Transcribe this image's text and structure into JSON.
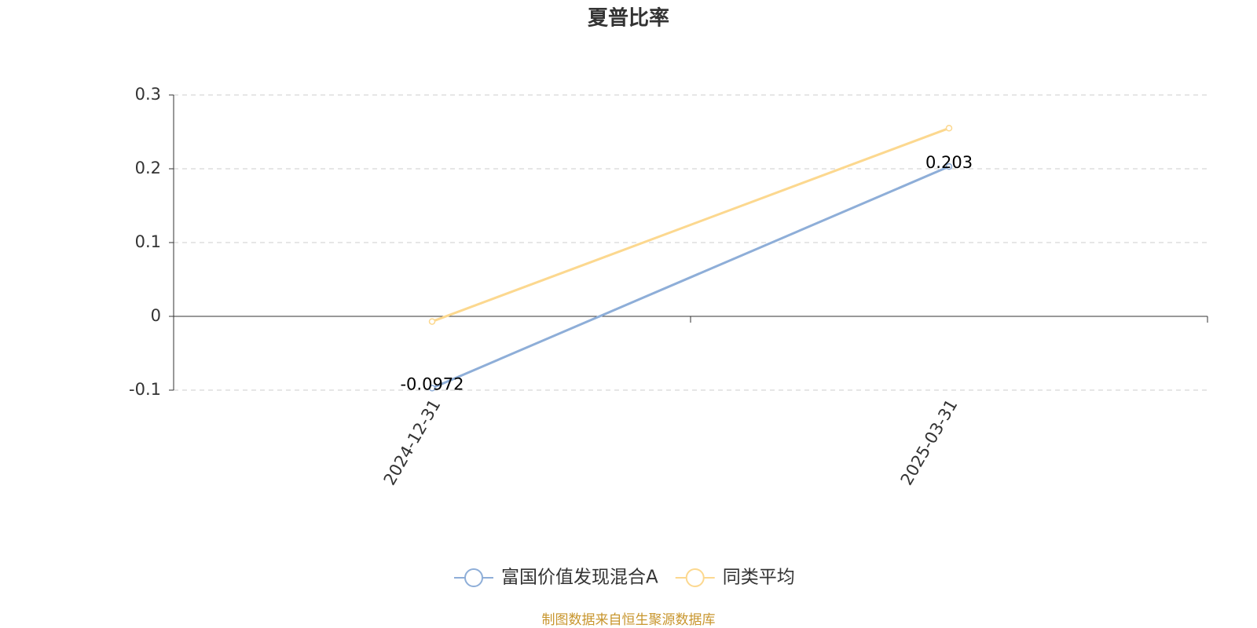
{
  "chart_data": {
    "type": "line",
    "title": "夏普比率",
    "categories": [
      "2024-12-31",
      "2025-03-31"
    ],
    "series": [
      {
        "name": "富国价值发现混合A",
        "color": "#8eaed8",
        "values": [
          -0.0972,
          0.203
        ],
        "show_labels": true
      },
      {
        "name": "同类平均",
        "color": "#fcd88f",
        "values": [
          -0.007,
          0.255
        ],
        "show_labels": false
      }
    ],
    "ylim": [
      -0.1,
      0.3
    ],
    "yticks": [
      -0.1,
      0,
      0.1,
      0.2,
      0.3
    ],
    "grid": true,
    "legend": "bottom",
    "source": "制图数据来自恒生聚源数据库"
  }
}
